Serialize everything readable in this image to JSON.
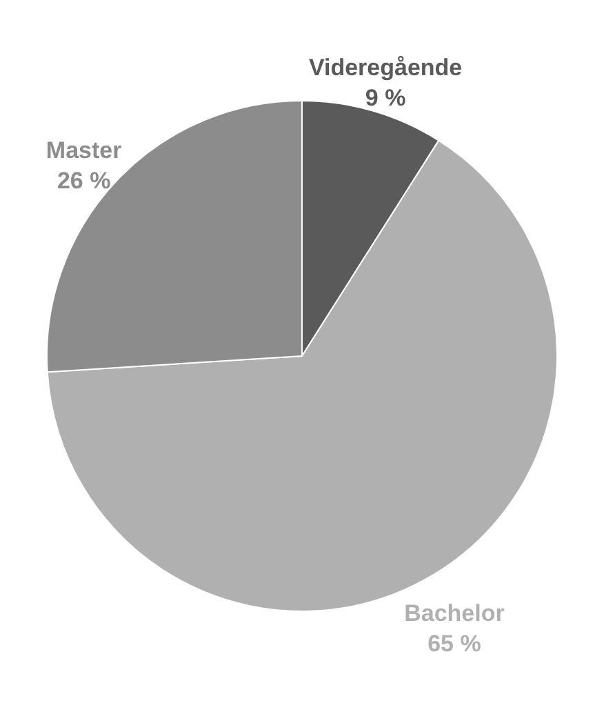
{
  "chart_data": {
    "type": "pie",
    "categories": [
      "Videregående",
      "Bachelor",
      "Master"
    ],
    "values": [
      9,
      65,
      26
    ],
    "value_labels": [
      "9 %",
      "65 %",
      "26 %"
    ],
    "colors": [
      "#5a5a5a",
      "#b0b0b0",
      "#8c8c8c"
    ]
  }
}
